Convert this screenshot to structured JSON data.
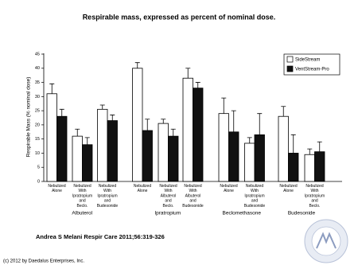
{
  "chart_data": {
    "type": "bar",
    "title": "Respirable mass, expressed as percent of nominal dose.",
    "y_label": "Respirable Mass (% nominal dose)",
    "groups": [
      {
        "name": "Albuterol",
        "categories": [
          "Nebulized Alone",
          "Nebulized With Ipratropium and Beclo.",
          "Nebulized With Ipratropium and Budesonide"
        ]
      },
      {
        "name": "Ipratropium",
        "categories": [
          "Nebulized Alone",
          "Nebulized With Albuterol and Beclo.",
          "Nebulized With Albuterol and Budesonide"
        ]
      },
      {
        "name": "Beclomethasone",
        "categories": [
          "Nebulized Alone",
          "Nebulized With Ipratropium and Budesonide"
        ]
      },
      {
        "name": "Budesonide",
        "categories": [
          "Nebulized Alone",
          "Nebulized With Ipratropium and Beclo."
        ]
      }
    ],
    "series": [
      {
        "name": "SideStream",
        "color": "#ffffff",
        "values": [
          31,
          16,
          25.5,
          40,
          20.5,
          36.5,
          24,
          13.5,
          23,
          9.5
        ],
        "errors": [
          3.5,
          2.5,
          1.5,
          2,
          1.5,
          3.5,
          5.5,
          2,
          3.5,
          2
        ]
      },
      {
        "name": "VentStream-Pro",
        "color": "#111111",
        "values": [
          23,
          13,
          21.5,
          18,
          16,
          33,
          17.5,
          16.5,
          10,
          10.5
        ],
        "errors": [
          2.5,
          2.5,
          2,
          4,
          2.5,
          2,
          7.5,
          7.5,
          6.5,
          3.5
        ]
      }
    ],
    "ylim": [
      0,
      45
    ],
    "yticks": [
      0,
      5,
      10,
      15,
      20,
      25,
      30,
      35,
      40,
      45
    ]
  },
  "footer": {
    "citation": "Andrea S Melani Respir Care 2011;56:319-326",
    "copyright": "(c) 2012 by Daedalus Enterprises, Inc."
  }
}
